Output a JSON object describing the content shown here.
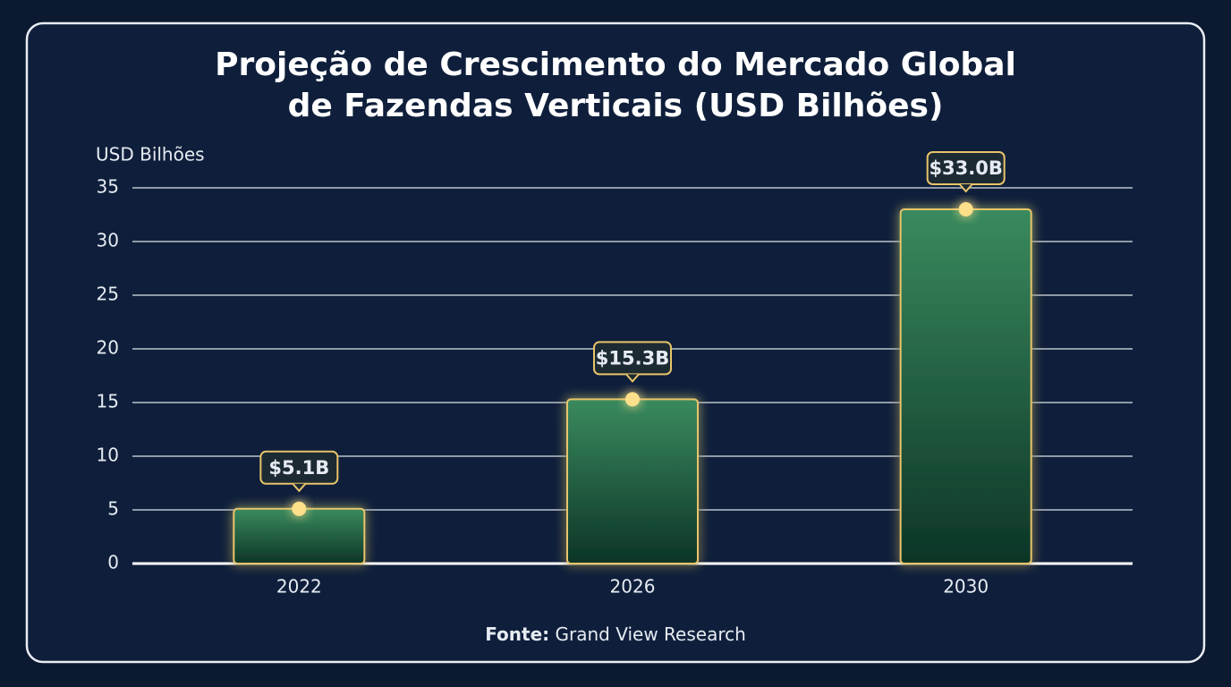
{
  "chart_data": {
    "type": "bar",
    "title": [
      "Projeção de Crescimento do Mercado Global",
      "de Fazendas Verticais (USD Bilhões)"
    ],
    "y_label": "USD Bilhões",
    "categories": [
      "2022",
      "2026",
      "2030"
    ],
    "values": [
      5.1,
      15.3,
      33.0
    ],
    "value_labels": [
      "$5.1B",
      "$15.3B",
      "$33.0B"
    ],
    "color": "#2f7d55",
    "ylim": [
      0,
      35
    ],
    "yticks": [
      0,
      5,
      10,
      15,
      20,
      25,
      30,
      35
    ],
    "grid": true,
    "source": {
      "label": "Fonte:",
      "text": "Grand View Research"
    }
  }
}
